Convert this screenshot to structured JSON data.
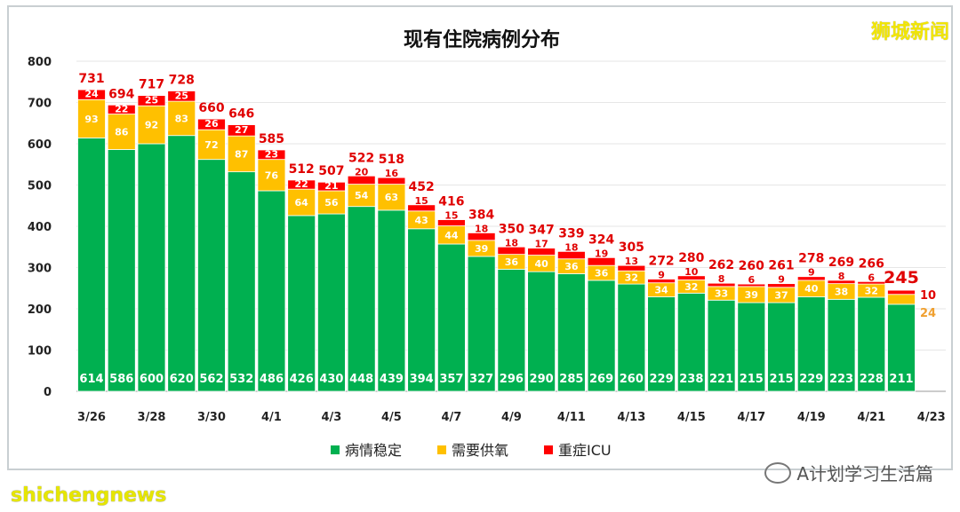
{
  "brand_watermark": "狮城新闻",
  "footer_note": "shichengnews",
  "wechat_watermark": "A计划学习生活篇",
  "chart_data": {
    "type": "bar",
    "stacked": true,
    "title": "现有住院病例分布",
    "xlabel": "",
    "ylabel": "",
    "ylim": [
      0,
      800
    ],
    "yticks": [
      0,
      100,
      200,
      300,
      400,
      500,
      600,
      700,
      800
    ],
    "grid": true,
    "legend_position": "bottom",
    "categories": [
      "3/26",
      "3/27",
      "3/28",
      "3/29",
      "3/30",
      "3/31",
      "4/1",
      "4/2",
      "4/3",
      "4/4",
      "4/5",
      "4/6",
      "4/7",
      "4/8",
      "4/9",
      "4/10",
      "4/11",
      "4/12",
      "4/13",
      "4/14",
      "4/15",
      "4/16",
      "4/17",
      "4/18",
      "4/19",
      "4/20",
      "4/21",
      "4/22",
      "4/23"
    ],
    "xtick_labels": [
      "3/26",
      "3/28",
      "3/30",
      "4/1",
      "4/3",
      "4/5",
      "4/7",
      "4/9",
      "4/11",
      "4/13",
      "4/15",
      "4/17",
      "4/19",
      "4/21",
      "4/23"
    ],
    "series": [
      {
        "name": "病情稳定",
        "color": "#00b050",
        "values": [
          614,
          586,
          600,
          620,
          562,
          532,
          486,
          426,
          430,
          448,
          439,
          394,
          357,
          327,
          296,
          290,
          285,
          269,
          260,
          229,
          238,
          221,
          215,
          215,
          229,
          223,
          228,
          211,
          null
        ]
      },
      {
        "name": "需要供氧",
        "color": "#ffc000",
        "values": [
          93,
          86,
          92,
          83,
          72,
          87,
          76,
          64,
          56,
          54,
          63,
          43,
          44,
          39,
          36,
          40,
          36,
          36,
          32,
          34,
          32,
          33,
          39,
          37,
          40,
          38,
          32,
          24,
          null
        ]
      },
      {
        "name": "重症ICU",
        "color": "#ff0000",
        "values": [
          24,
          22,
          25,
          25,
          26,
          27,
          23,
          22,
          21,
          20,
          16,
          15,
          15,
          18,
          18,
          17,
          18,
          19,
          13,
          9,
          10,
          8,
          6,
          9,
          9,
          8,
          6,
          10,
          null
        ]
      }
    ],
    "totals": [
      731,
      694,
      717,
      728,
      660,
      646,
      585,
      512,
      507,
      522,
      518,
      452,
      416,
      384,
      350,
      347,
      339,
      324,
      305,
      272,
      280,
      262,
      260,
      261,
      278,
      269,
      266,
      245,
      null
    ]
  }
}
